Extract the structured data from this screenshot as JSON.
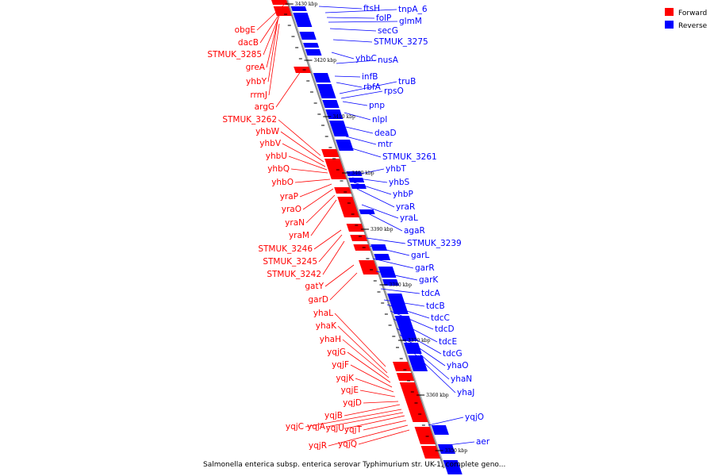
{
  "caption": "Salmonella enterica subsp. enterica serovar Typhimurium str. UK-1, complete geno...",
  "legend": [
    {
      "label": "Forward",
      "color": "#ff0000"
    },
    {
      "label": "Reverse",
      "color": "#0000ff"
    }
  ],
  "colors": {
    "forward": "#ff0000",
    "reverse": "#0000ff",
    "axis": "#999999"
  },
  "ticks": [
    "3430 kbp",
    "3420 kbp",
    "3410 kbp",
    "3400 kbp",
    "3390 kbp",
    "3380 kbp",
    "3370 kbp",
    "3360 kbp",
    "3350 kbp"
  ],
  "forward_labels": [
    "obgE",
    "dacB",
    "STMUK_3285",
    "greA",
    "yhbY",
    "rrmJ",
    "argG",
    "STMUK_3262",
    "yhbW",
    "yhbV",
    "yhbU",
    "yhbQ",
    "yhbO",
    "yraP",
    "yraO",
    "yraN",
    "yraM",
    "STMUK_3246",
    "STMUK_3245",
    "STMUK_3242",
    "gatY",
    "garD",
    "yhaL",
    "yhaK",
    "yhaH",
    "yqjG",
    "yqjF",
    "yqjK",
    "yqjE",
    "yqjD",
    "yqjB",
    "yqjC",
    "yqjA",
    "yqjU",
    "yqjT",
    "yqjR",
    "yqjQ"
  ],
  "reverse_labels": [
    "ftsH",
    "tnpA_6",
    "folP",
    "glmM",
    "secG",
    "STMUK_3275",
    "yhbC",
    "nusA",
    "infB",
    "rbfA",
    "truB",
    "rpsO",
    "pnp",
    "nlpI",
    "deaD",
    "mtr",
    "STMUK_3261",
    "yhbT",
    "yhbS",
    "yhbP",
    "yraR",
    "yraL",
    "agaR",
    "STMUK_3239",
    "garL",
    "garR",
    "garK",
    "tdcA",
    "tdcB",
    "tdcC",
    "tdcD",
    "tdcE",
    "tdcG",
    "yhaO",
    "yhaN",
    "yhaJ",
    "yqjO",
    "aer"
  ]
}
